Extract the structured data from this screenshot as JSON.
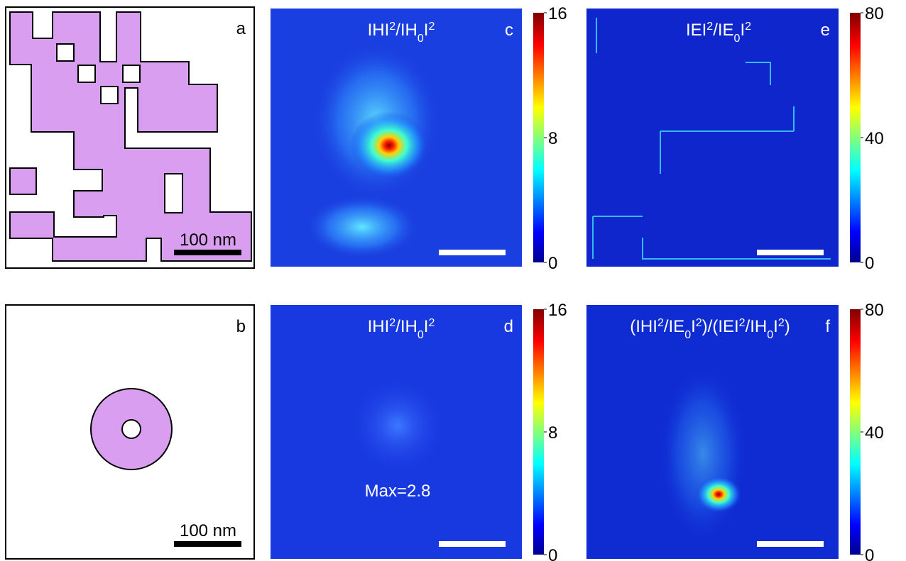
{
  "panels": [
    {
      "label": "a",
      "scale_bar": "100 nm"
    },
    {
      "label": "b",
      "scale_bar": "100 nm"
    },
    {
      "label": "c",
      "title": [
        {
          "text": "IHI"
        },
        {
          "sup": "2"
        },
        {
          "text": "/IH"
        },
        {
          "sub": "0"
        },
        {
          "text": "I"
        },
        {
          "sup": "2"
        }
      ],
      "colorbar": {
        "lim": [
          0,
          16
        ],
        "ticks": [
          0,
          8,
          16
        ]
      }
    },
    {
      "label": "d",
      "title": [
        {
          "text": "IHI"
        },
        {
          "sup": "2"
        },
        {
          "text": "/IH"
        },
        {
          "sub": "0"
        },
        {
          "text": "I"
        },
        {
          "sup": "2"
        }
      ],
      "annotation": "Max=2.8",
      "colorbar": {
        "lim": [
          0,
          16
        ],
        "ticks": [
          0,
          8,
          16
        ]
      }
    },
    {
      "label": "e",
      "title": [
        {
          "text": "IEI"
        },
        {
          "sup": "2"
        },
        {
          "text": "/IE"
        },
        {
          "sub": "0"
        },
        {
          "text": "I"
        },
        {
          "sup": "2"
        }
      ],
      "colorbar": {
        "lim": [
          0,
          80
        ],
        "ticks": [
          0,
          40,
          80
        ]
      }
    },
    {
      "label": "f",
      "title": [
        {
          "text": "(IHI"
        },
        {
          "sup": "2"
        },
        {
          "text": "/IE"
        },
        {
          "sub": "0"
        },
        {
          "text": "I"
        },
        {
          "sup": "2"
        },
        {
          "text": ")/(IEI"
        },
        {
          "sup": "2"
        },
        {
          "text": "/IH"
        },
        {
          "sub": "0"
        },
        {
          "text": "I"
        },
        {
          "sup": "2"
        },
        {
          "text": ")"
        }
      ],
      "colorbar": {
        "lim": [
          0,
          80
        ],
        "ticks": [
          0,
          40,
          80
        ]
      }
    }
  ]
}
